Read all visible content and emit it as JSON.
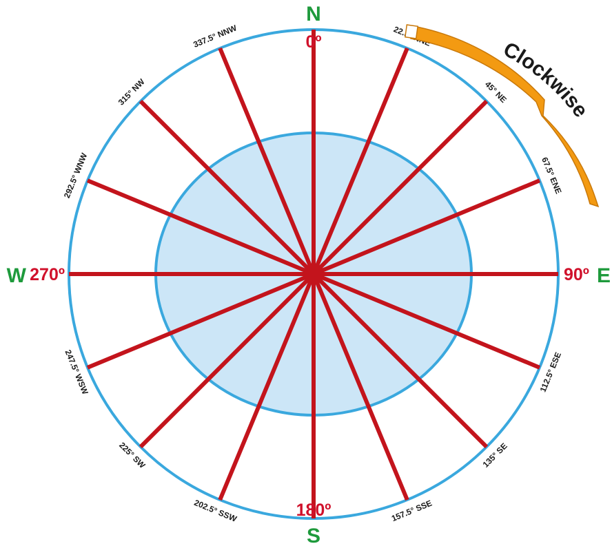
{
  "cardinals": {
    "north": "N",
    "east": "E",
    "south": "S",
    "west": "W"
  },
  "main_degrees": {
    "north": "0º",
    "east": "90º",
    "south": "180º",
    "west": "270º"
  },
  "directions": [
    {
      "angle": 0,
      "label": "0º",
      "major": true
    },
    {
      "angle": 22.5,
      "label": "22.5° NNE",
      "major": false
    },
    {
      "angle": 45,
      "label": "45° NE",
      "major": false
    },
    {
      "angle": 67.5,
      "label": "67.5° ENE",
      "major": false
    },
    {
      "angle": 90,
      "label": "90º",
      "major": true
    },
    {
      "angle": 112.5,
      "label": "112.5° ESE",
      "major": false
    },
    {
      "angle": 135,
      "label": "135° SE",
      "major": false
    },
    {
      "angle": 157.5,
      "label": "157.5° SSE",
      "major": false
    },
    {
      "angle": 180,
      "label": "180º",
      "major": true
    },
    {
      "angle": 202.5,
      "label": "202.5° SSW",
      "major": false
    },
    {
      "angle": 225,
      "label": "225° SW",
      "major": false
    },
    {
      "angle": 247.5,
      "label": "247.5° WSW",
      "major": false
    },
    {
      "angle": 270,
      "label": "270º",
      "major": true
    },
    {
      "angle": 292.5,
      "label": "292.5° WNW",
      "major": false
    },
    {
      "angle": 315,
      "label": "315° NW",
      "major": false
    },
    {
      "angle": 337.5,
      "label": "337.5° NNW",
      "major": false
    }
  ],
  "rotation_label": "Clockwise",
  "colors": {
    "ring": "#3aa8de",
    "inner_fill": "#cce6f7",
    "spoke": "#c3141c",
    "cardinal": "#1e9a3c",
    "degree": "#d0112b",
    "arrow": "#f39a12",
    "arrow_stroke": "#c8780a"
  }
}
